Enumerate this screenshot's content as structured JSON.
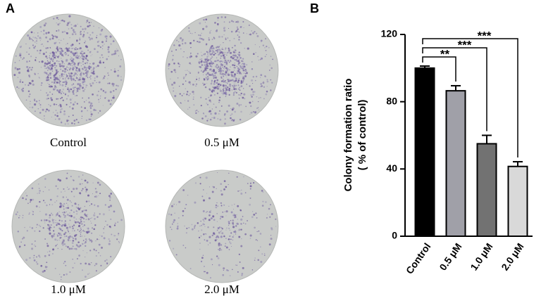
{
  "panels": {
    "a": "A",
    "b": "B"
  },
  "dishes": [
    "Control",
    "0.5 μM",
    "1.0 μM",
    "2.0 μM"
  ],
  "chart_data": {
    "type": "bar",
    "y_label": [
      "Colony formation ratio",
      "( % of control)"
    ],
    "categories": [
      "Control",
      "0.5 μM",
      "1.0 μM",
      "2.0 μM"
    ],
    "values": [
      100,
      86.5,
      55,
      41.5
    ],
    "errors": [
      1.2,
      3,
      5,
      2.8
    ],
    "colors": [
      "#000000",
      "#a0a0a8",
      "#727272",
      "#d9d9d9"
    ],
    "ylim": [
      0,
      120
    ],
    "yticks": [
      0,
      40,
      80,
      120
    ],
    "significance": [
      "**",
      "***",
      "***"
    ]
  }
}
